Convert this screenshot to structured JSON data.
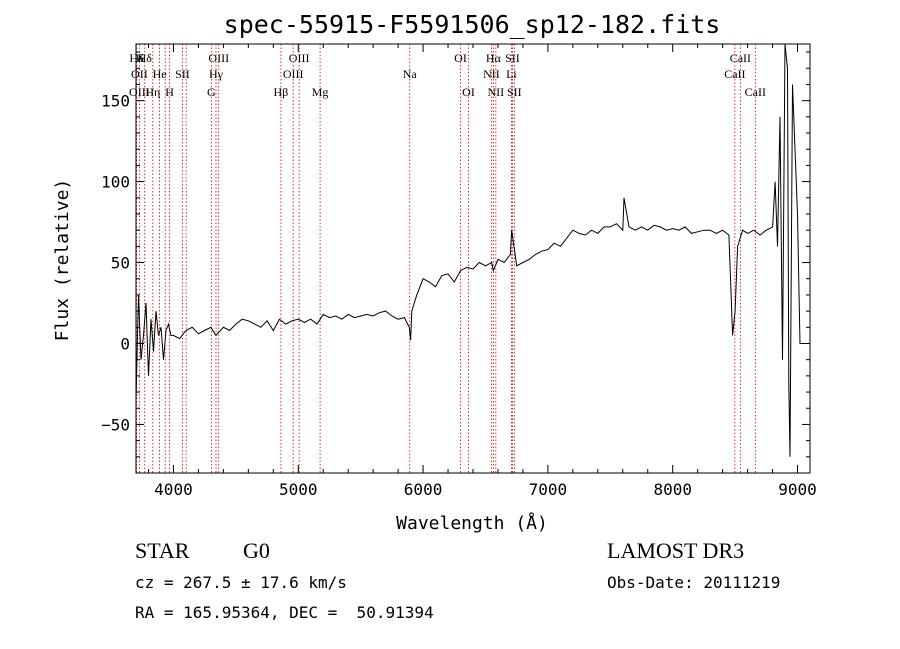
{
  "chart_data": {
    "type": "line",
    "title": "spec-55915-F5591506_sp12-182.fits",
    "xlabel": "Wavelength (Å)",
    "ylabel": "Flux (relative)",
    "xlim": [
      3700,
      9100
    ],
    "ylim": [
      -80,
      185
    ],
    "xticks": [
      4000,
      5000,
      6000,
      7000,
      8000,
      9000
    ],
    "xtick_labels": [
      "4000",
      "5000",
      "6000",
      "7000",
      "8000",
      "9000"
    ],
    "yticks": [
      -50,
      0,
      50,
      100,
      150
    ],
    "ytick_labels": [
      "−50",
      "0",
      "50",
      "100",
      "150"
    ],
    "grid": false,
    "series": [
      {
        "name": "spectrum",
        "x": [
          3700,
          3720,
          3740,
          3760,
          3780,
          3800,
          3820,
          3840,
          3860,
          3880,
          3900,
          3920,
          3940,
          3960,
          3980,
          4000,
          4050,
          4100,
          4150,
          4200,
          4250,
          4300,
          4340,
          4400,
          4450,
          4500,
          4550,
          4600,
          4650,
          4700,
          4750,
          4800,
          4850,
          4900,
          4950,
          5000,
          5050,
          5100,
          5150,
          5200,
          5250,
          5300,
          5350,
          5400,
          5450,
          5500,
          5550,
          5600,
          5650,
          5700,
          5750,
          5800,
          5850,
          5890,
          5900,
          5910,
          5950,
          6000,
          6050,
          6100,
          6150,
          6200,
          6250,
          6300,
          6350,
          6400,
          6450,
          6500,
          6550,
          6563,
          6600,
          6650,
          6700,
          6710,
          6750,
          6800,
          6850,
          6900,
          6950,
          7000,
          7050,
          7100,
          7150,
          7200,
          7250,
          7300,
          7350,
          7400,
          7450,
          7500,
          7550,
          7600,
          7610,
          7650,
          7700,
          7750,
          7800,
          7850,
          7900,
          7950,
          8000,
          8050,
          8100,
          8150,
          8200,
          8250,
          8300,
          8350,
          8400,
          8450,
          8480,
          8500,
          8520,
          8540,
          8560,
          8600,
          8650,
          8700,
          8750,
          8800,
          8820,
          8840,
          8860,
          8880,
          8900,
          8920,
          8930,
          8940,
          8960,
          8980,
          9000,
          9020,
          9050,
          9100
        ],
        "y": [
          -35,
          30,
          -10,
          5,
          25,
          -20,
          15,
          -5,
          20,
          5,
          10,
          -10,
          8,
          12,
          5,
          5,
          3,
          8,
          10,
          6,
          8,
          10,
          5,
          10,
          8,
          12,
          15,
          14,
          12,
          10,
          14,
          8,
          15,
          12,
          14,
          15,
          13,
          15,
          12,
          18,
          16,
          17,
          15,
          18,
          16,
          17,
          18,
          17,
          19,
          20,
          17,
          15,
          16,
          10,
          2,
          20,
          30,
          40,
          38,
          35,
          42,
          43,
          38,
          45,
          47,
          46,
          50,
          48,
          50,
          45,
          52,
          50,
          55,
          70,
          48,
          50,
          52,
          55,
          57,
          58,
          62,
          60,
          65,
          70,
          68,
          67,
          70,
          68,
          72,
          72,
          74,
          70,
          90,
          72,
          70,
          72,
          70,
          73,
          72,
          70,
          71,
          70,
          72,
          68,
          69,
          70,
          70,
          68,
          70,
          67,
          5,
          20,
          60,
          65,
          70,
          68,
          70,
          67,
          70,
          72,
          100,
          60,
          140,
          -10,
          185,
          170,
          -25,
          -70,
          160,
          120,
          80,
          0,
          0,
          0
        ]
      }
    ],
    "emission_lines": [
      {
        "label": "Hδ",
        "wl": 3704,
        "row": 1
      },
      {
        "label": "K",
        "wl": 3734,
        "row": 1
      },
      {
        "label": "Hδ",
        "wl": 3770,
        "row": 1
      },
      {
        "label": "OIII",
        "wl": 4363,
        "row": 1
      },
      {
        "label": "OIII",
        "wl": 5007,
        "row": 1
      },
      {
        "label": "OI",
        "wl": 6300,
        "row": 1
      },
      {
        "label": "Hα",
        "wl": 6563,
        "row": 1
      },
      {
        "label": "SII",
        "wl": 6716,
        "row": 1
      },
      {
        "label": "CaII",
        "wl": 8542,
        "row": 1
      },
      {
        "label": "OII",
        "wl": 3727,
        "row": 2
      },
      {
        "label": "He",
        "wl": 3889,
        "row": 2
      },
      {
        "label": "SII",
        "wl": 4072,
        "row": 2
      },
      {
        "label": "Hγ",
        "wl": 4341,
        "row": 2
      },
      {
        "label": "OIII",
        "wl": 4959,
        "row": 2
      },
      {
        "label": "Na",
        "wl": 5893,
        "row": 2
      },
      {
        "label": "NII",
        "wl": 6548,
        "row": 2
      },
      {
        "label": "Li",
        "wl": 6708,
        "row": 2
      },
      {
        "label": "CaII",
        "wl": 8498,
        "row": 2
      },
      {
        "label": "OIII",
        "wl": 3727,
        "row": 3
      },
      {
        "label": "Hη",
        "wl": 3835,
        "row": 3
      },
      {
        "label": "H",
        "wl": 3969,
        "row": 3
      },
      {
        "label": "G",
        "wl": 4304,
        "row": 3
      },
      {
        "label": "Hβ",
        "wl": 4861,
        "row": 3
      },
      {
        "label": "Mg",
        "wl": 5175,
        "row": 3
      },
      {
        "label": "OI",
        "wl": 6364,
        "row": 3
      },
      {
        "label": "NII",
        "wl": 6583,
        "row": 3
      },
      {
        "label": "SII",
        "wl": 6731,
        "row": 3
      },
      {
        "label": "CaII",
        "wl": 8662,
        "row": 3
      }
    ],
    "line_markers": [
      3704,
      3727,
      3770,
      3835,
      3889,
      3934,
      3969,
      4072,
      4102,
      4304,
      4341,
      4363,
      4861,
      4959,
      5007,
      5175,
      5893,
      6300,
      6364,
      6548,
      6563,
      6583,
      6708,
      6716,
      6731,
      8498,
      8542,
      8662
    ]
  },
  "info": {
    "object_class": "STAR",
    "subclass": "G0",
    "survey": "LAMOST DR3",
    "redshift": "cz = 267.5 ± 17.6 km/s",
    "obs_date": "Obs-Date: 20111219",
    "coords": "RA = 165.95364, DEC =  50.91394"
  },
  "colors": {
    "line_marker": "#cc0000",
    "spectrum": "#000000",
    "axes": "#000000"
  }
}
